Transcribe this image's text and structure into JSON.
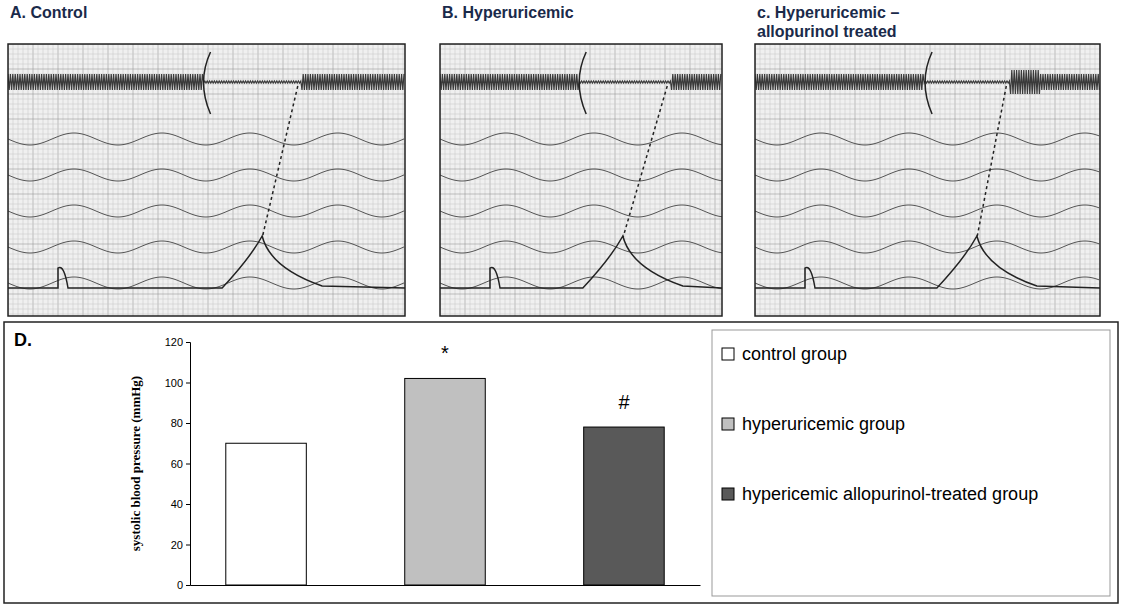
{
  "tracings": [
    {
      "title": "A. Control"
    },
    {
      "title": "B. Hyperuricemic"
    },
    {
      "title": "c. Hyperuricemic – allopurinol treated"
    }
  ],
  "chart_data": {
    "type": "bar",
    "title": "D.",
    "y_label": "systolic blood pressure (mmHg)",
    "categories": [
      null,
      null,
      null
    ],
    "series": [
      {
        "name": "control group",
        "color": "#ffffff",
        "values": [
          70,
          null,
          null
        ]
      },
      {
        "name": "hyperuricemic group",
        "color": "#c0c0c0",
        "values": [
          null,
          102,
          null
        ]
      },
      {
        "name": "hypericemic allopurinol-treated group",
        "color": "#595959",
        "values": [
          null,
          null,
          78
        ]
      }
    ],
    "ylim": [
      0,
      120
    ],
    "yticks": [
      0,
      20,
      40,
      60,
      80,
      100,
      120
    ],
    "grid": false,
    "legend": "right",
    "annotations": [
      {
        "text": "*",
        "x": 1
      },
      {
        "text": "#",
        "x": 2
      }
    ]
  }
}
